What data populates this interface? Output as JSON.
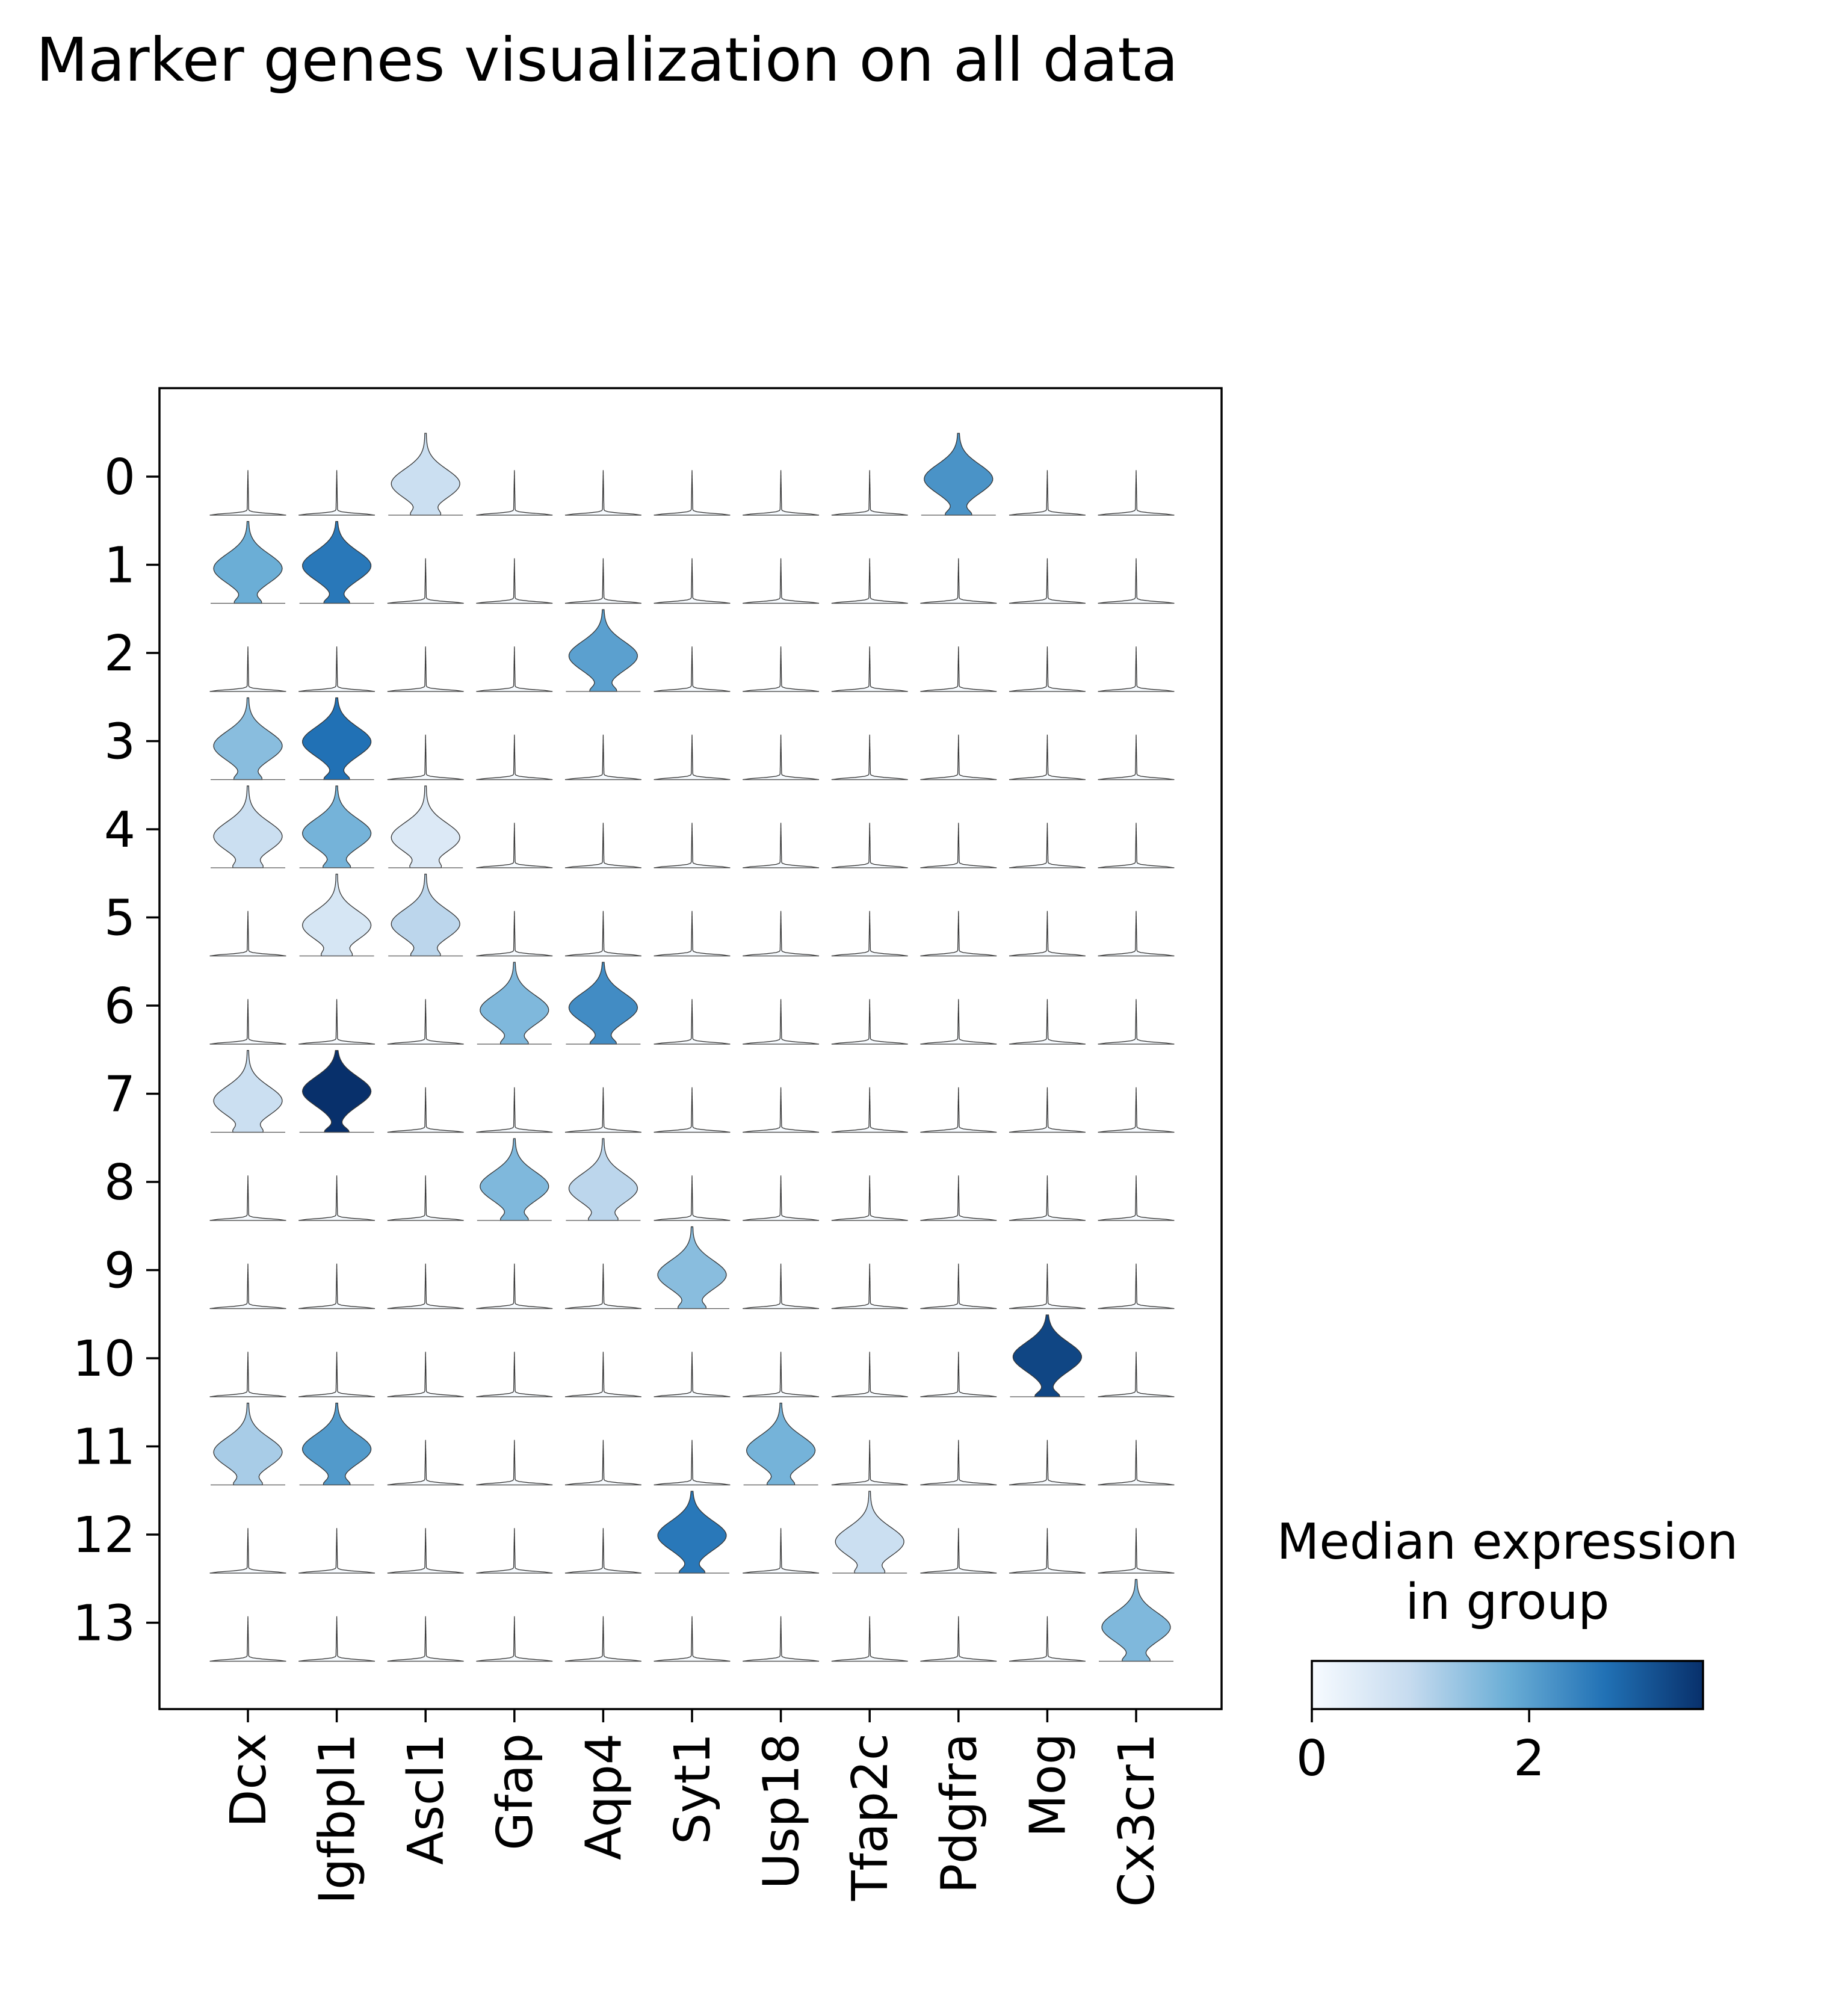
{
  "title": "Marker genes visualization on all data",
  "chart_data": {
    "type": "stacked_violin",
    "title": "Marker genes visualization on all data",
    "genes": [
      "Dcx",
      "Igfbpl1",
      "Ascl1",
      "Gfap",
      "Aqp4",
      "Syt1",
      "Usp18",
      "Tfap2c",
      "Pdgfra",
      "Mog",
      "Cx3cr1"
    ],
    "groups": [
      "0",
      "1",
      "2",
      "3",
      "4",
      "5",
      "6",
      "7",
      "8",
      "9",
      "10",
      "11",
      "12",
      "13"
    ],
    "colorbar": {
      "label": "Median expression\nin group",
      "ticks": [
        0,
        2
      ],
      "range": [
        0,
        3.6
      ],
      "colormap": "Blues",
      "colors": [
        "#f7fbff",
        "#c6dbef",
        "#6baed6",
        "#2171b5",
        "#08306b"
      ]
    },
    "median_expression": [
      [
        0.0,
        0.0,
        0.8,
        0.0,
        0.0,
        0.0,
        0.0,
        0.0,
        2.2,
        0.0,
        0.0
      ],
      [
        1.8,
        2.6,
        0.0,
        0.0,
        0.0,
        0.0,
        0.0,
        0.0,
        0.0,
        0.0,
        0.0
      ],
      [
        0.0,
        0.0,
        0.0,
        0.0,
        2.0,
        0.0,
        0.0,
        0.0,
        0.0,
        0.0,
        0.0
      ],
      [
        1.5,
        2.7,
        0.0,
        0.0,
        0.0,
        0.0,
        0.0,
        0.0,
        0.0,
        0.0,
        0.0
      ],
      [
        0.8,
        1.7,
        0.5,
        0.0,
        0.0,
        0.0,
        0.0,
        0.0,
        0.0,
        0.0,
        0.0
      ],
      [
        0.0,
        0.6,
        1.0,
        0.0,
        0.0,
        0.0,
        0.0,
        0.0,
        0.0,
        0.0,
        0.0
      ],
      [
        0.0,
        0.0,
        0.0,
        1.6,
        2.3,
        0.0,
        0.0,
        0.0,
        0.0,
        0.0,
        0.0
      ],
      [
        0.8,
        3.6,
        0.0,
        0.0,
        0.0,
        0.0,
        0.0,
        0.0,
        0.0,
        0.0,
        0.0
      ],
      [
        0.0,
        0.0,
        0.0,
        1.6,
        1.0,
        0.0,
        0.0,
        0.0,
        0.0,
        0.0,
        0.0
      ],
      [
        0.0,
        0.0,
        0.0,
        0.0,
        0.0,
        1.5,
        0.0,
        0.0,
        0.0,
        0.0,
        0.0
      ],
      [
        0.0,
        0.0,
        0.0,
        0.0,
        0.0,
        0.0,
        0.0,
        0.0,
        0.0,
        3.3,
        0.0
      ],
      [
        1.2,
        2.1,
        0.0,
        0.0,
        0.0,
        0.0,
        1.7,
        0.0,
        0.0,
        0.0,
        0.0
      ],
      [
        0.0,
        0.0,
        0.0,
        0.0,
        0.0,
        2.6,
        0.0,
        0.8,
        0.0,
        0.0,
        0.0
      ],
      [
        0.0,
        0.0,
        0.0,
        0.0,
        0.0,
        0.0,
        0.0,
        0.0,
        0.0,
        0.0,
        1.6
      ]
    ]
  }
}
